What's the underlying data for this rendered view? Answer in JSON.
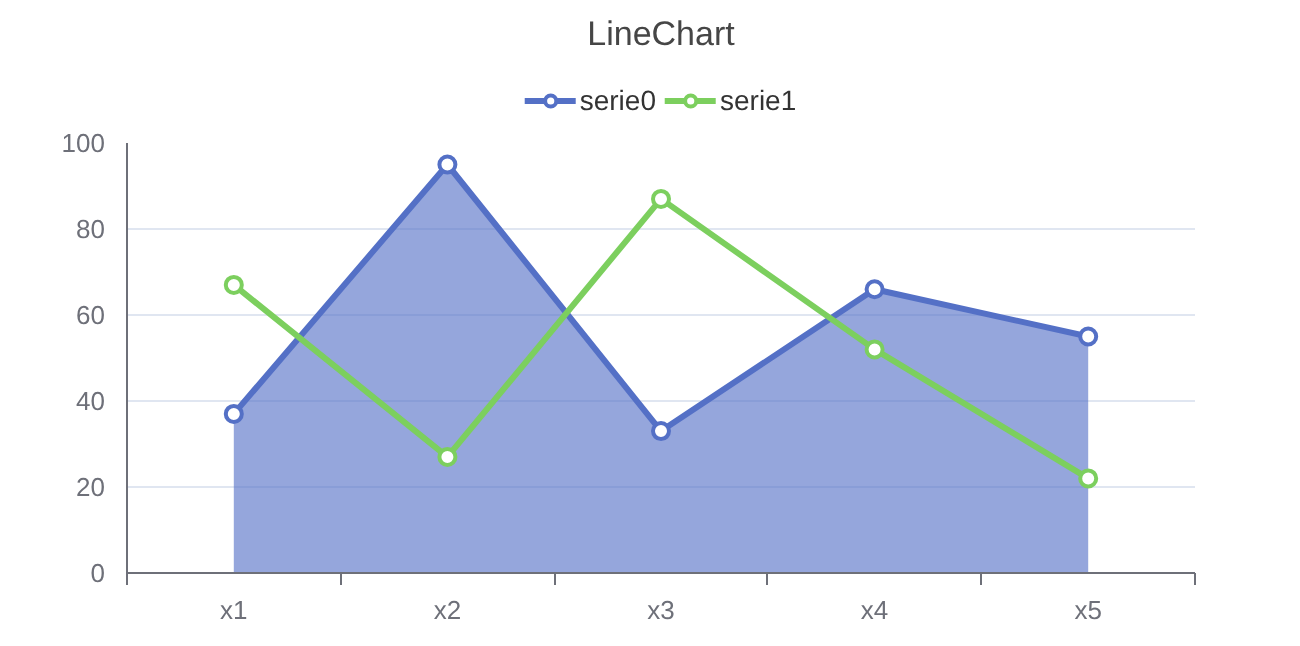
{
  "chart_data": {
    "type": "line",
    "title": "LineChart",
    "categories": [
      "x1",
      "x2",
      "x3",
      "x4",
      "x5"
    ],
    "series": [
      {
        "name": "serie0",
        "type": "area",
        "color": "#5470c6",
        "values": [
          37,
          95,
          33,
          66,
          55
        ]
      },
      {
        "name": "serie1",
        "type": "line",
        "color": "#7ccf5e",
        "values": [
          67,
          27,
          87,
          52,
          22
        ]
      }
    ],
    "ylim": [
      0,
      100
    ],
    "yticks": [
      0,
      20,
      40,
      60,
      80,
      100
    ],
    "grid": "y",
    "legend": "top",
    "marker": "circle",
    "line_style": "solid"
  }
}
